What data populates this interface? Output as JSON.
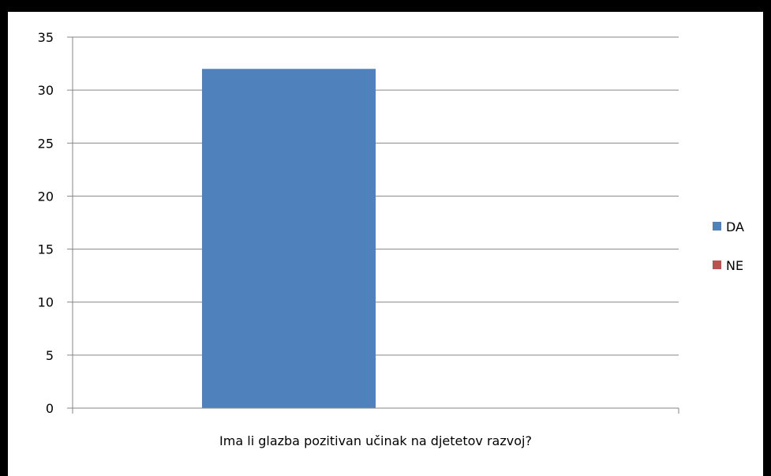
{
  "chart_data": {
    "type": "bar",
    "categories": [
      "Ima li glazba pozitivan učinak na djetetov razvoj?"
    ],
    "series": [
      {
        "name": "DA",
        "values": [
          32
        ],
        "color": "#4f81bd"
      },
      {
        "name": "NE",
        "values": [
          0
        ],
        "color": "#c0504d"
      }
    ],
    "ylim": [
      0,
      35
    ],
    "yticks": [
      0,
      5,
      10,
      15,
      20,
      25,
      30,
      35
    ],
    "grid": true,
    "legend": "right"
  }
}
